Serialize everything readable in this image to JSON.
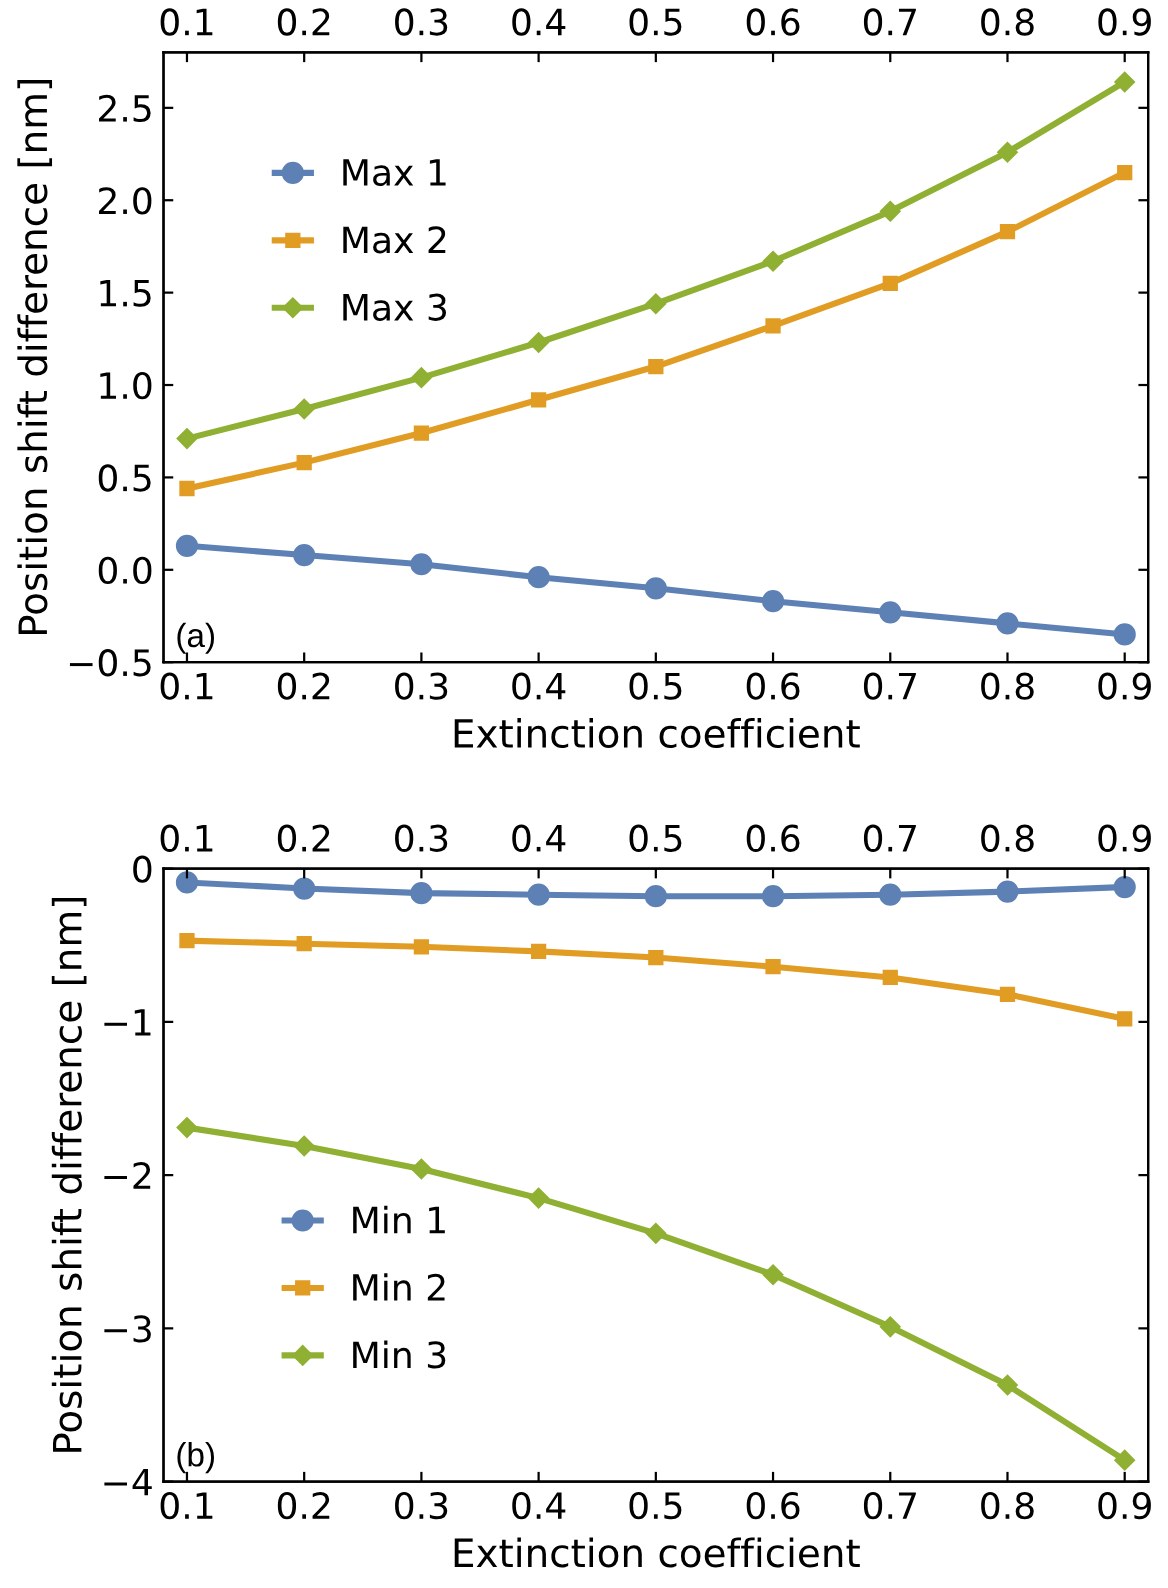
{
  "chart_data": [
    {
      "type": "line",
      "xlabel": "Extinction coefficient",
      "ylabel": "Position shift difference [nm]",
      "x": [
        0.1,
        0.2,
        0.3,
        0.4,
        0.5,
        0.6,
        0.7,
        0.8,
        0.9
      ],
      "series": [
        {
          "name": "Max 1",
          "color": "#5e81b5",
          "marker": "circle",
          "values": [
            0.13,
            0.08,
            0.03,
            -0.04,
            -0.1,
            -0.17,
            -0.23,
            -0.29,
            -0.35
          ]
        },
        {
          "name": "Max 2",
          "color": "#e19c24",
          "marker": "square",
          "values": [
            0.44,
            0.58,
            0.74,
            0.92,
            1.1,
            1.32,
            1.55,
            1.83,
            2.15
          ]
        },
        {
          "name": "Max 3",
          "color": "#8fb032",
          "marker": "diamond",
          "values": [
            0.71,
            0.87,
            1.04,
            1.23,
            1.44,
            1.67,
            1.94,
            2.26,
            2.64
          ]
        }
      ],
      "xlim": [
        0.08,
        0.92
      ],
      "xticks": [
        0.1,
        0.2,
        0.3,
        0.4,
        0.5,
        0.6,
        0.7,
        0.8,
        0.9
      ],
      "x2lim": [
        0.08,
        0.92
      ],
      "x2ticks": [
        0.1,
        0.2,
        0.3,
        0.4,
        0.5,
        0.6,
        0.7,
        0.8,
        0.9
      ],
      "ylim": [
        -0.5,
        2.8
      ],
      "yticks": [
        {
          "value": -0.5,
          "label": "−0.5"
        },
        {
          "value": 0,
          "label": "0.0"
        },
        0.5,
        {
          "value": 1,
          "label": "1.0"
        },
        1.5,
        {
          "value": 2,
          "label": "2.0"
        },
        2.5
      ],
      "legend": "top left",
      "grid": false,
      "annotations": [
        "(a)"
      ]
    },
    {
      "type": "line",
      "xlabel": "Extinction coefficient",
      "ylabel": "Position shift difference [nm]",
      "x": [
        0.1,
        0.2,
        0.3,
        0.4,
        0.5,
        0.6,
        0.7,
        0.8,
        0.9
      ],
      "series": [
        {
          "name": "Min 1",
          "color": "#5e81b5",
          "marker": "circle",
          "values": [
            -0.09,
            -0.13,
            -0.16,
            -0.17,
            -0.18,
            -0.18,
            -0.17,
            -0.15,
            -0.12
          ]
        },
        {
          "name": "Min 2",
          "color": "#e19c24",
          "marker": "square",
          "values": [
            -0.47,
            -0.49,
            -0.51,
            -0.54,
            -0.58,
            -0.64,
            -0.71,
            -0.82,
            -0.98
          ]
        },
        {
          "name": "Min 3",
          "color": "#8fb032",
          "marker": "diamond",
          "values": [
            -1.69,
            -1.81,
            -1.96,
            -2.15,
            -2.38,
            -2.65,
            -2.99,
            -3.37,
            -3.86
          ]
        }
      ],
      "xlim": [
        0.08,
        0.92
      ],
      "xticks": [
        0.1,
        0.2,
        0.3,
        0.4,
        0.5,
        0.6,
        0.7,
        0.8,
        0.9
      ],
      "x2lim": [
        0.08,
        0.92
      ],
      "x2ticks": [
        0.1,
        0.2,
        0.3,
        0.4,
        0.5,
        0.6,
        0.7,
        0.8,
        0.9
      ],
      "ylim": [
        -4,
        0
      ],
      "yticks": [
        {
          "value": -4,
          "label": "−4"
        },
        {
          "value": -3,
          "label": "−3"
        },
        {
          "value": -2,
          "label": "−2"
        },
        {
          "value": -1,
          "label": "−1"
        },
        0
      ],
      "legend": "bottom left",
      "grid": false,
      "annotations": [
        "(b)"
      ]
    }
  ]
}
